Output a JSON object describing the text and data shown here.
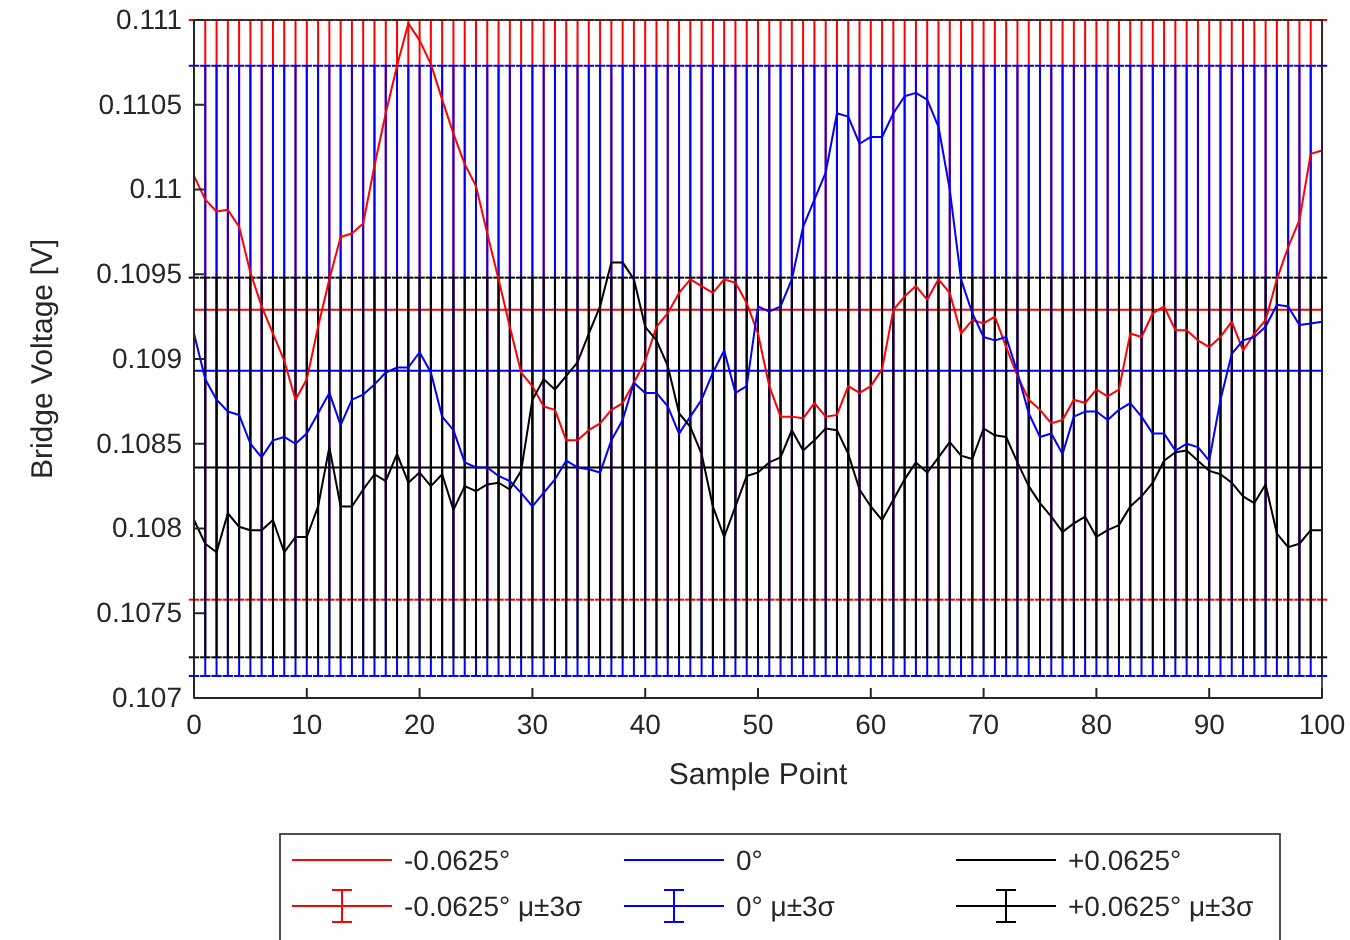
{
  "chart_data": {
    "type": "line",
    "xlabel": "Sample Point",
    "ylabel": "Bridge Voltage [V]",
    "x": [
      0,
      1,
      2,
      3,
      4,
      5,
      6,
      7,
      8,
      9,
      10,
      11,
      12,
      13,
      14,
      15,
      16,
      17,
      18,
      19,
      20,
      21,
      22,
      23,
      24,
      25,
      26,
      27,
      28,
      29,
      30,
      31,
      32,
      33,
      34,
      35,
      36,
      37,
      38,
      39,
      40,
      41,
      42,
      43,
      44,
      45,
      46,
      47,
      48,
      49,
      50,
      51,
      52,
      53,
      54,
      55,
      56,
      57,
      58,
      59,
      60,
      61,
      62,
      63,
      64,
      65,
      66,
      67,
      68,
      69,
      70,
      71,
      72,
      73,
      74,
      75,
      76,
      77,
      78,
      79,
      80,
      81,
      82,
      83,
      84,
      85,
      86,
      87,
      88,
      89,
      90,
      91,
      92,
      93,
      94,
      95,
      96,
      97,
      98,
      99,
      100
    ],
    "xlim": [
      0,
      100
    ],
    "xticks": [
      0,
      10,
      20,
      30,
      40,
      50,
      60,
      70,
      80,
      90,
      100
    ],
    "ylim": [
      0.107,
      0.111
    ],
    "yticks": [
      0.107,
      0.1075,
      0.108,
      0.1085,
      0.109,
      0.1095,
      0.11,
      0.1105,
      0.111
    ],
    "legend": "bottom",
    "marker": "none",
    "line_style": "solid",
    "grid": false,
    "series": [
      {
        "name": "-0.0625° μ±3σ",
        "color": "#ff0000",
        "values": [
          0.10929,
          0.10929,
          0.10929,
          0.10929,
          0.10929,
          0.10929,
          0.10929,
          0.10929,
          0.10929,
          0.10929,
          0.10929,
          0.10929,
          0.10929,
          0.10929,
          0.10929,
          0.10929,
          0.10929,
          0.10929,
          0.10929,
          0.10929,
          0.10929,
          0.10929,
          0.10929,
          0.10929,
          0.10929,
          0.10929,
          0.10929,
          0.10929,
          0.10929,
          0.10929,
          0.10929,
          0.10929,
          0.10929,
          0.10929,
          0.10929,
          0.10929,
          0.10929,
          0.10929,
          0.10929,
          0.10929,
          0.10929,
          0.10929,
          0.10929,
          0.10929,
          0.10929,
          0.10929,
          0.10929,
          0.10929,
          0.10929,
          0.10929,
          0.10929,
          0.10929,
          0.10929,
          0.10929,
          0.10929,
          0.10929,
          0.10929,
          0.10929,
          0.10929,
          0.10929,
          0.10929,
          0.10929,
          0.10929,
          0.10929,
          0.10929,
          0.10929,
          0.10929,
          0.10929,
          0.10929,
          0.10929,
          0.10929,
          0.10929,
          0.10929,
          0.10929,
          0.10929,
          0.10929,
          0.10929,
          0.10929,
          0.10929,
          0.10929,
          0.10929,
          0.10929,
          0.10929,
          0.10929,
          0.10929,
          0.10929,
          0.10929,
          0.10929,
          0.10929,
          0.10929,
          0.10929,
          0.10929,
          0.10929,
          0.10929,
          0.10929,
          0.10929,
          0.10929,
          0.10929,
          0.10929,
          0.10929,
          0.10929
        ],
        "errors": [
          0.00171,
          0.00171,
          0.00171,
          0.00171,
          0.00171,
          0.00171,
          0.00171,
          0.00171,
          0.00171,
          0.00171,
          0.00171,
          0.00171,
          0.00171,
          0.00171,
          0.00171,
          0.00171,
          0.00171,
          0.00171,
          0.00171,
          0.00171,
          0.00171,
          0.00171,
          0.00171,
          0.00171,
          0.00171,
          0.00171,
          0.00171,
          0.00171,
          0.00171,
          0.00171,
          0.00171,
          0.00171,
          0.00171,
          0.00171,
          0.00171,
          0.00171,
          0.00171,
          0.00171,
          0.00171,
          0.00171,
          0.00171,
          0.00171,
          0.00171,
          0.00171,
          0.00171,
          0.00171,
          0.00171,
          0.00171,
          0.00171,
          0.00171,
          0.00171,
          0.00171,
          0.00171,
          0.00171,
          0.00171,
          0.00171,
          0.00171,
          0.00171,
          0.00171,
          0.00171,
          0.00171,
          0.00171,
          0.00171,
          0.00171,
          0.00171,
          0.00171,
          0.00171,
          0.00171,
          0.00171,
          0.00171,
          0.00171,
          0.00171,
          0.00171,
          0.00171,
          0.00171,
          0.00171,
          0.00171,
          0.00171,
          0.00171,
          0.00171,
          0.00171,
          0.00171,
          0.00171,
          0.00171,
          0.00171,
          0.00171,
          0.00171,
          0.00171,
          0.00171,
          0.00171,
          0.00171,
          0.00171,
          0.00171,
          0.00171,
          0.00171,
          0.00171,
          0.00171,
          0.00171,
          0.00171,
          0.00171,
          0.00171
        ]
      },
      {
        "name": "0° μ±3σ",
        "color": "#0000ff",
        "values": [
          0.10893,
          0.10893,
          0.10893,
          0.10893,
          0.10893,
          0.10893,
          0.10893,
          0.10893,
          0.10893,
          0.10893,
          0.10893,
          0.10893,
          0.10893,
          0.10893,
          0.10893,
          0.10893,
          0.10893,
          0.10893,
          0.10893,
          0.10893,
          0.10893,
          0.10893,
          0.10893,
          0.10893,
          0.10893,
          0.10893,
          0.10893,
          0.10893,
          0.10893,
          0.10893,
          0.10893,
          0.10893,
          0.10893,
          0.10893,
          0.10893,
          0.10893,
          0.10893,
          0.10893,
          0.10893,
          0.10893,
          0.10893,
          0.10893,
          0.10893,
          0.10893,
          0.10893,
          0.10893,
          0.10893,
          0.10893,
          0.10893,
          0.10893,
          0.10893,
          0.10893,
          0.10893,
          0.10893,
          0.10893,
          0.10893,
          0.10893,
          0.10893,
          0.10893,
          0.10893,
          0.10893,
          0.10893,
          0.10893,
          0.10893,
          0.10893,
          0.10893,
          0.10893,
          0.10893,
          0.10893,
          0.10893,
          0.10893,
          0.10893,
          0.10893,
          0.10893,
          0.10893,
          0.10893,
          0.10893,
          0.10893,
          0.10893,
          0.10893,
          0.10893,
          0.10893,
          0.10893,
          0.10893,
          0.10893,
          0.10893,
          0.10893,
          0.10893,
          0.10893,
          0.10893,
          0.10893,
          0.10893,
          0.10893,
          0.10893,
          0.10893,
          0.10893,
          0.10893,
          0.10893,
          0.10893,
          0.10893,
          0.10893
        ],
        "errors": [
          0.0018,
          0.0018,
          0.0018,
          0.0018,
          0.0018,
          0.0018,
          0.0018,
          0.0018,
          0.0018,
          0.0018,
          0.0018,
          0.0018,
          0.0018,
          0.0018,
          0.0018,
          0.0018,
          0.0018,
          0.0018,
          0.0018,
          0.0018,
          0.0018,
          0.0018,
          0.0018,
          0.0018,
          0.0018,
          0.0018,
          0.0018,
          0.0018,
          0.0018,
          0.0018,
          0.0018,
          0.0018,
          0.0018,
          0.0018,
          0.0018,
          0.0018,
          0.0018,
          0.0018,
          0.0018,
          0.0018,
          0.0018,
          0.0018,
          0.0018,
          0.0018,
          0.0018,
          0.0018,
          0.0018,
          0.0018,
          0.0018,
          0.0018,
          0.0018,
          0.0018,
          0.0018,
          0.0018,
          0.0018,
          0.0018,
          0.0018,
          0.0018,
          0.0018,
          0.0018,
          0.0018,
          0.0018,
          0.0018,
          0.0018,
          0.0018,
          0.0018,
          0.0018,
          0.0018,
          0.0018,
          0.0018,
          0.0018,
          0.0018,
          0.0018,
          0.0018,
          0.0018,
          0.0018,
          0.0018,
          0.0018,
          0.0018,
          0.0018,
          0.0018,
          0.0018,
          0.0018,
          0.0018,
          0.0018,
          0.0018,
          0.0018,
          0.0018,
          0.0018,
          0.0018,
          0.0018,
          0.0018,
          0.0018,
          0.0018,
          0.0018,
          0.0018,
          0.0018,
          0.0018,
          0.0018,
          0.0018,
          0.0018
        ]
      },
      {
        "name": "+0.0625° μ±3σ",
        "color": "#000000",
        "values": [
          0.10836,
          0.10836,
          0.10836,
          0.10836,
          0.10836,
          0.10836,
          0.10836,
          0.10836,
          0.10836,
          0.10836,
          0.10836,
          0.10836,
          0.10836,
          0.10836,
          0.10836,
          0.10836,
          0.10836,
          0.10836,
          0.10836,
          0.10836,
          0.10836,
          0.10836,
          0.10836,
          0.10836,
          0.10836,
          0.10836,
          0.10836,
          0.10836,
          0.10836,
          0.10836,
          0.10836,
          0.10836,
          0.10836,
          0.10836,
          0.10836,
          0.10836,
          0.10836,
          0.10836,
          0.10836,
          0.10836,
          0.10836,
          0.10836,
          0.10836,
          0.10836,
          0.10836,
          0.10836,
          0.10836,
          0.10836,
          0.10836,
          0.10836,
          0.10836,
          0.10836,
          0.10836,
          0.10836,
          0.10836,
          0.10836,
          0.10836,
          0.10836,
          0.10836,
          0.10836,
          0.10836,
          0.10836,
          0.10836,
          0.10836,
          0.10836,
          0.10836,
          0.10836,
          0.10836,
          0.10836,
          0.10836,
          0.10836,
          0.10836,
          0.10836,
          0.10836,
          0.10836,
          0.10836,
          0.10836,
          0.10836,
          0.10836,
          0.10836,
          0.10836,
          0.10836,
          0.10836,
          0.10836,
          0.10836,
          0.10836,
          0.10836,
          0.10836,
          0.10836,
          0.10836,
          0.10836,
          0.10836,
          0.10836,
          0.10836,
          0.10836,
          0.10836,
          0.10836,
          0.10836,
          0.10836,
          0.10836,
          0.10836
        ],
        "errors": [
          0.00112,
          0.00112,
          0.00112,
          0.00112,
          0.00112,
          0.00112,
          0.00112,
          0.00112,
          0.00112,
          0.00112,
          0.00112,
          0.00112,
          0.00112,
          0.00112,
          0.00112,
          0.00112,
          0.00112,
          0.00112,
          0.00112,
          0.00112,
          0.00112,
          0.00112,
          0.00112,
          0.00112,
          0.00112,
          0.00112,
          0.00112,
          0.00112,
          0.00112,
          0.00112,
          0.00112,
          0.00112,
          0.00112,
          0.00112,
          0.00112,
          0.00112,
          0.00112,
          0.00112,
          0.00112,
          0.00112,
          0.00112,
          0.00112,
          0.00112,
          0.00112,
          0.00112,
          0.00112,
          0.00112,
          0.00112,
          0.00112,
          0.00112,
          0.00112,
          0.00112,
          0.00112,
          0.00112,
          0.00112,
          0.00112,
          0.00112,
          0.00112,
          0.00112,
          0.00112,
          0.00112,
          0.00112,
          0.00112,
          0.00112,
          0.00112,
          0.00112,
          0.00112,
          0.00112,
          0.00112,
          0.00112,
          0.00112,
          0.00112,
          0.00112,
          0.00112,
          0.00112,
          0.00112,
          0.00112,
          0.00112,
          0.00112,
          0.00112,
          0.00112,
          0.00112,
          0.00112,
          0.00112,
          0.00112,
          0.00112,
          0.00112,
          0.00112,
          0.00112,
          0.00112,
          0.00112,
          0.00112,
          0.00112,
          0.00112,
          0.00112,
          0.00112,
          0.00112,
          0.00112,
          0.00112,
          0.00112,
          0.00112
        ]
      },
      {
        "name": "-0.0625°",
        "color": "#ff0000",
        "values": [
          0.11008,
          0.10994,
          0.10987,
          0.10988,
          0.10978,
          0.10951,
          0.10931,
          0.10915,
          0.10899,
          0.10876,
          0.10888,
          0.10919,
          0.10947,
          0.10972,
          0.10974,
          0.1098,
          0.11014,
          0.11045,
          0.11073,
          0.11098,
          0.11088,
          0.11074,
          0.11053,
          0.11033,
          0.11015,
          0.11002,
          0.10974,
          0.10947,
          0.10919,
          0.10892,
          0.10884,
          0.10872,
          0.1087,
          0.10852,
          0.10852,
          0.10858,
          0.10862,
          0.1087,
          0.10874,
          0.10886,
          0.10899,
          0.10919,
          0.10927,
          0.10939,
          0.10947,
          0.10943,
          0.10939,
          0.10947,
          0.10945,
          0.10933,
          0.10915,
          0.10884,
          0.10866,
          0.10866,
          0.10865,
          0.10874,
          0.10866,
          0.10867,
          0.10884,
          0.1088,
          0.10884,
          0.10894,
          0.10929,
          0.10937,
          0.10943,
          0.10935,
          0.10947,
          0.10939,
          0.10915,
          0.10923,
          0.10921,
          0.10925,
          0.10907,
          0.1089,
          0.10876,
          0.1087,
          0.10862,
          0.10864,
          0.10876,
          0.10874,
          0.10882,
          0.10878,
          0.10882,
          0.10915,
          0.10913,
          0.10927,
          0.10931,
          0.10917,
          0.10917,
          0.10911,
          0.10907,
          0.10913,
          0.10922,
          0.10905,
          0.10915,
          0.10923,
          0.10947,
          0.10966,
          0.10982,
          0.11021,
          0.11023
        ]
      },
      {
        "name": "0°",
        "color": "#0000ff",
        "values": [
          0.10915,
          0.10888,
          0.10876,
          0.10869,
          0.10867,
          0.1085,
          0.10842,
          0.10852,
          0.10854,
          0.1085,
          0.10856,
          0.10868,
          0.1088,
          0.10861,
          0.10876,
          0.10879,
          0.10885,
          0.10892,
          0.10895,
          0.10895,
          0.10904,
          0.10892,
          0.10866,
          0.10858,
          0.10839,
          0.10836,
          0.10836,
          0.10831,
          0.10828,
          0.10821,
          0.10813,
          0.10821,
          0.10829,
          0.1084,
          0.10836,
          0.10835,
          0.10833,
          0.10852,
          0.10864,
          0.10886,
          0.1088,
          0.1088,
          0.10872,
          0.10856,
          0.10866,
          0.10876,
          0.10892,
          0.10905,
          0.1088,
          0.10884,
          0.10931,
          0.10928,
          0.10931,
          0.10947,
          0.10978,
          0.10994,
          0.1101,
          0.11045,
          0.11043,
          0.11027,
          0.11031,
          0.11031,
          0.11045,
          0.11055,
          0.11057,
          0.11053,
          0.11037,
          0.11,
          0.10947,
          0.10927,
          0.10913,
          0.10911,
          0.10913,
          0.10892,
          0.10868,
          0.10854,
          0.10856,
          0.10844,
          0.10866,
          0.10869,
          0.10869,
          0.10864,
          0.1087,
          0.10874,
          0.10866,
          0.10856,
          0.10856,
          0.10846,
          0.1085,
          0.10848,
          0.1084,
          0.10876,
          0.10903,
          0.10911,
          0.10913,
          0.10919,
          0.10932,
          0.10931,
          0.1092,
          0.10921,
          0.10922
        ]
      },
      {
        "name": "+0.0625°",
        "color": "#000000",
        "values": [
          0.10805,
          0.10791,
          0.10786,
          0.10809,
          0.10801,
          0.10799,
          0.10799,
          0.10805,
          0.10786,
          0.10795,
          0.10795,
          0.10813,
          0.10848,
          0.10813,
          0.10813,
          0.10823,
          0.10832,
          0.10828,
          0.10844,
          0.10827,
          0.10833,
          0.10825,
          0.10832,
          0.10811,
          0.10825,
          0.10822,
          0.10826,
          0.10827,
          0.10823,
          0.10834,
          0.10876,
          0.10888,
          0.10882,
          0.1089,
          0.10898,
          0.10915,
          0.10931,
          0.10957,
          0.10957,
          0.10947,
          0.10919,
          0.10911,
          0.10896,
          0.10868,
          0.1086,
          0.10844,
          0.10813,
          0.10795,
          0.10813,
          0.10831,
          0.10833,
          0.10839,
          0.10842,
          0.10858,
          0.10846,
          0.10852,
          0.10859,
          0.10858,
          0.10844,
          0.10823,
          0.10813,
          0.10805,
          0.10817,
          0.10829,
          0.10839,
          0.10833,
          0.10842,
          0.10851,
          0.10843,
          0.10841,
          0.10859,
          0.10855,
          0.10854,
          0.10839,
          0.10825,
          0.10815,
          0.10807,
          0.10798,
          0.10803,
          0.10807,
          0.10795,
          0.10799,
          0.10802,
          0.10813,
          0.10819,
          0.10827,
          0.1084,
          0.10845,
          0.10846,
          0.1084,
          0.10834,
          0.10832,
          0.10827,
          0.10819,
          0.10815,
          0.10826,
          0.10797,
          0.10789,
          0.10791,
          0.10799,
          0.10799
        ]
      }
    ]
  }
}
